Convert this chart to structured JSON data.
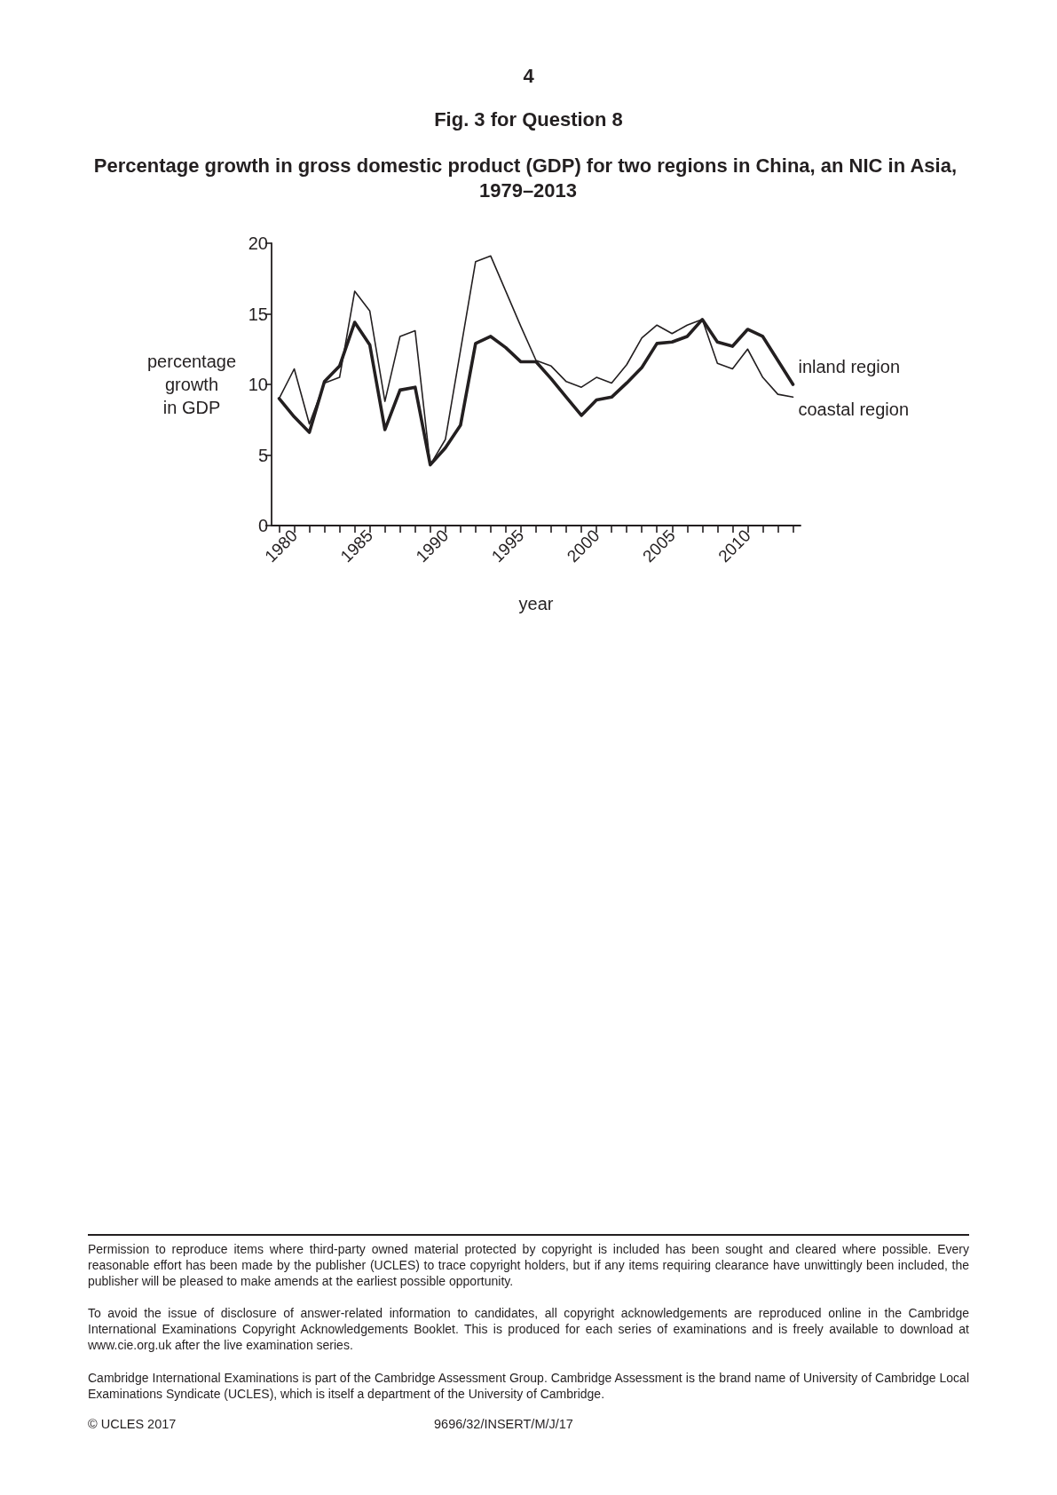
{
  "chart_data": {
    "type": "line",
    "title": "Percentage growth in gross domestic product (GDP) for two regions in China, an NIC in Asia, 1979–2013",
    "xlabel": "year",
    "ylabel": "percentage\ngrowth\nin GDP",
    "annotations": [
      "4",
      "Fig. 3 for Question 8",
      "Permission to reproduce items where third-party owned material protected by copyright is included has been sought and cleared where possible. Every reasonable effort has been made by the publisher (UCLES) to trace copyright holders, but if any items requiring clearance have unwittingly been included, the publisher will be pleased to make amends at the earliest possible opportunity.",
      "To avoid the issue of disclosure of answer-related information to candidates, all copyright acknowledgements are reproduced online in the Cambridge International Examinations Copyright Acknowledgements Booklet. This is produced for each series of examinations and is freely available to download at www.cie.org.uk after the live examination series.",
      "Cambridge International Examinations is part of the Cambridge Assessment Group. Cambridge Assessment is the brand name of University of Cambridge Local Examinations Syndicate (UCLES), which is itself a department of the University of Cambridge.",
      "© UCLES 2017",
      "9696/32/INSERT/M/J/17"
    ],
    "x": [
      1979,
      1980,
      1981,
      1982,
      1983,
      1984,
      1985,
      1986,
      1987,
      1988,
      1989,
      1990,
      1991,
      1992,
      1993,
      1994,
      1995,
      1996,
      1997,
      1998,
      1999,
      2000,
      2001,
      2002,
      2003,
      2004,
      2005,
      2006,
      2007,
      2008,
      2009,
      2010,
      2011,
      2012,
      2013
    ],
    "series": [
      {
        "name": "inland region",
        "color": "#231f20",
        "values": [
          9.0,
          7.7,
          6.6,
          10.2,
          11.3,
          14.4,
          12.8,
          6.8,
          9.6,
          9.8,
          4.3,
          5.5,
          7.1,
          12.9,
          13.4,
          12.6,
          11.6,
          11.6,
          10.4,
          9.1,
          7.8,
          8.9,
          9.1,
          10.1,
          11.2,
          12.9,
          13.0,
          13.4,
          14.6,
          13.0,
          12.7,
          13.9,
          13.4,
          11.7,
          10.0
        ]
      },
      {
        "name": "coastal region",
        "color": "#231f20",
        "values": [
          9.0,
          11.1,
          7.2,
          10.1,
          10.5,
          16.6,
          15.2,
          8.8,
          13.4,
          13.8,
          4.3,
          6.1,
          12.4,
          18.7,
          19.1,
          16.6,
          14.1,
          11.7,
          11.3,
          10.2,
          9.8,
          10.5,
          10.1,
          11.4,
          13.3,
          14.2,
          13.6,
          14.2,
          14.6,
          11.5,
          11.1,
          12.5,
          10.5,
          9.3,
          9.1
        ]
      }
    ],
    "xlim": [
      1978.5,
      2013.5
    ],
    "xticks": [
      {
        "value": 1979,
        "label": null
      },
      1980,
      {
        "value": 1981,
        "label": null
      },
      {
        "value": 1982,
        "label": null
      },
      {
        "value": 1983,
        "label": null
      },
      {
        "value": 1984,
        "label": null
      },
      1985,
      {
        "value": 1986,
        "label": null
      },
      {
        "value": 1987,
        "label": null
      },
      {
        "value": 1988,
        "label": null
      },
      {
        "value": 1989,
        "label": null
      },
      1990,
      {
        "value": 1991,
        "label": null
      },
      {
        "value": 1992,
        "label": null
      },
      {
        "value": 1993,
        "label": null
      },
      {
        "value": 1994,
        "label": null
      },
      1995,
      {
        "value": 1996,
        "label": null
      },
      {
        "value": 1997,
        "label": null
      },
      {
        "value": 1998,
        "label": null
      },
      {
        "value": 1999,
        "label": null
      },
      2000,
      {
        "value": 2001,
        "label": null
      },
      {
        "value": 2002,
        "label": null
      },
      {
        "value": 2003,
        "label": null
      },
      {
        "value": 2004,
        "label": null
      },
      2005,
      {
        "value": 2006,
        "label": null
      },
      {
        "value": 2007,
        "label": null
      },
      {
        "value": 2008,
        "label": null
      },
      {
        "value": 2009,
        "label": null
      },
      2010,
      {
        "value": 2011,
        "label": null
      },
      {
        "value": 2012,
        "label": null
      },
      {
        "value": 2013,
        "label": null
      }
    ],
    "ylim": [
      0,
      20
    ],
    "yticks": [
      0,
      5,
      10,
      15,
      20
    ],
    "grid": false,
    "legend": false,
    "marker": "none",
    "line_style": "solid"
  }
}
